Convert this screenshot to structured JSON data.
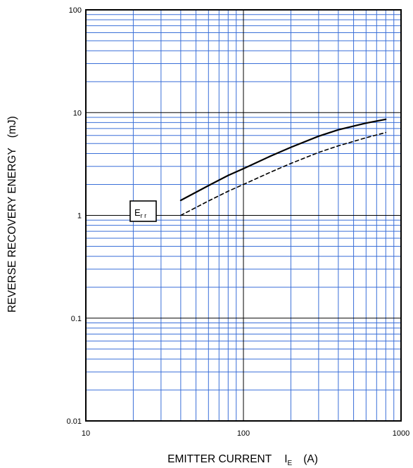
{
  "chart_data": {
    "type": "line",
    "x_scale": "log",
    "y_scale": "log",
    "xlim": [
      10,
      1000
    ],
    "ylim": [
      0.01,
      100
    ],
    "grid": true,
    "xlabel": {
      "main": "EMITTER CURRENT",
      "symbol": "I",
      "subscript": "E",
      "unit": "(A)"
    },
    "ylabel": {
      "main": "REVERSE RECOVERY ENERGY",
      "unit": "(mJ)"
    },
    "x_ticks": [
      "10",
      "100",
      "1000"
    ],
    "y_ticks": [
      "0.01",
      "0.1",
      "1",
      "10",
      "100"
    ],
    "annotation": {
      "symbol": "E",
      "subscript": "r r"
    },
    "grid_color": "#3a6fd8",
    "series": [
      {
        "style": "solid",
        "x": [
          40,
          60,
          80,
          100,
          150,
          200,
          300,
          400,
          500,
          600,
          800
        ],
        "y": [
          1.4,
          1.95,
          2.45,
          2.85,
          3.8,
          4.6,
          5.9,
          6.8,
          7.4,
          7.9,
          8.6
        ]
      },
      {
        "style": "dashed",
        "x": [
          40,
          60,
          80,
          100,
          150,
          200,
          300,
          400,
          500,
          600,
          800
        ],
        "y": [
          1.0,
          1.38,
          1.72,
          2.0,
          2.65,
          3.2,
          4.1,
          4.75,
          5.25,
          5.7,
          6.4
        ]
      }
    ]
  }
}
